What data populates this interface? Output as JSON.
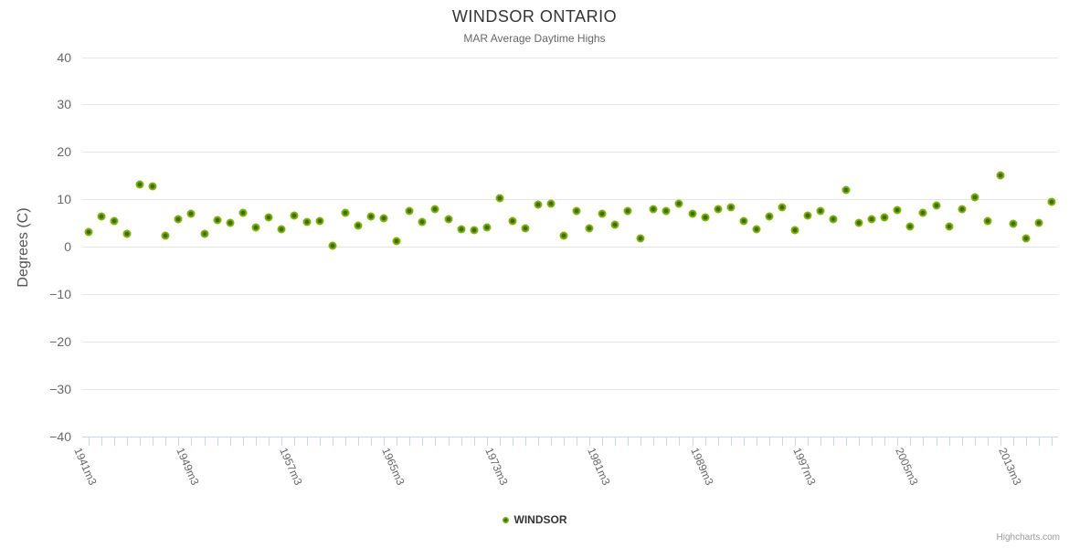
{
  "chart_data": {
    "type": "scatter",
    "title": "WINDSOR ONTARIO",
    "subtitle": "MAR Average Daytime Highs",
    "ylabel": "Degrees (C)",
    "xlabel": "",
    "ylim": [
      -40,
      40
    ],
    "y_ticks": [
      40,
      30,
      20,
      10,
      0,
      -10,
      -20,
      -30,
      -40
    ],
    "grid": true,
    "legend_position": "bottom-center",
    "x_suffix": "m3",
    "x_tick_label_every": 8,
    "x_tick_labels": [
      "1941m3",
      "1949m3",
      "1957m3",
      "1965m3",
      "1973m3",
      "1981m3",
      "1989m3",
      "1997m3",
      "2005m3",
      "2013m3"
    ],
    "x": [
      1941,
      1942,
      1943,
      1944,
      1945,
      1946,
      1947,
      1948,
      1949,
      1950,
      1951,
      1952,
      1953,
      1954,
      1955,
      1956,
      1957,
      1958,
      1959,
      1960,
      1961,
      1962,
      1963,
      1964,
      1965,
      1966,
      1967,
      1968,
      1969,
      1970,
      1971,
      1972,
      1973,
      1974,
      1975,
      1976,
      1977,
      1978,
      1979,
      1980,
      1981,
      1982,
      1983,
      1984,
      1985,
      1986,
      1987,
      1988,
      1989,
      1990,
      1991,
      1992,
      1993,
      1994,
      1995,
      1996,
      1997,
      1998,
      1999,
      2000,
      2001,
      2002,
      2003,
      2004,
      2005,
      2006,
      2007,
      2008,
      2009,
      2010,
      2011,
      2012,
      2013,
      2014,
      2015,
      2016
    ],
    "series": [
      {
        "name": "WINDSOR",
        "color": "#7cb502",
        "values": [
          3.0,
          6.4,
          5.4,
          2.7,
          13.2,
          12.7,
          2.4,
          5.8,
          6.9,
          2.7,
          5.6,
          5.0,
          7.1,
          4.1,
          6.2,
          3.6,
          6.5,
          5.2,
          5.4,
          0.2,
          7.2,
          4.5,
          6.3,
          6.0,
          1.2,
          7.5,
          5.2,
          7.9,
          5.7,
          3.6,
          3.5,
          4.1,
          10.3,
          5.4,
          3.8,
          8.9,
          9.0,
          2.3,
          7.5,
          3.9,
          7.0,
          4.7,
          7.5,
          1.7,
          7.9,
          7.6,
          9.0,
          7.0,
          6.2,
          7.9,
          8.2,
          5.4,
          3.6,
          6.3,
          8.3,
          3.4,
          6.5,
          7.5,
          5.8,
          11.9,
          5.0,
          5.7,
          6.2,
          7.7,
          4.3,
          7.2,
          8.6,
          4.3,
          8.0,
          10.4,
          5.4,
          15.1,
          4.9,
          1.8,
          5.0,
          9.4
        ]
      }
    ],
    "credits": "Highcharts.com"
  }
}
